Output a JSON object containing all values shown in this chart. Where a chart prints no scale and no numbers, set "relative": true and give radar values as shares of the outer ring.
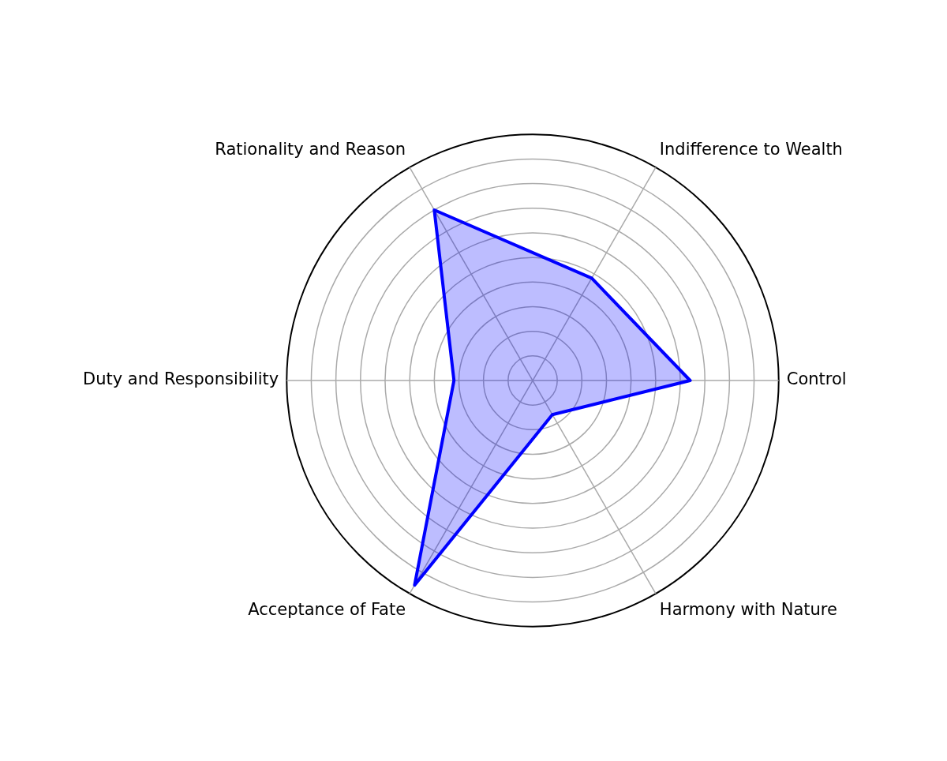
{
  "chart_data": {
    "type": "radar",
    "relative": true,
    "grid": true,
    "legend": false,
    "marker": "none",
    "line_style": "solid",
    "categories": [
      "Indifference to Wealth",
      "Control",
      "Harmony with Nature",
      "Acceptance of Fate",
      "Duty and Responsibility",
      "Rationality and Reason"
    ],
    "series": [
      {
        "color": "#0000ff",
        "values": [
          0.48,
          0.64,
          0.16,
          0.96,
          0.32,
          0.8
        ]
      }
    ]
  }
}
